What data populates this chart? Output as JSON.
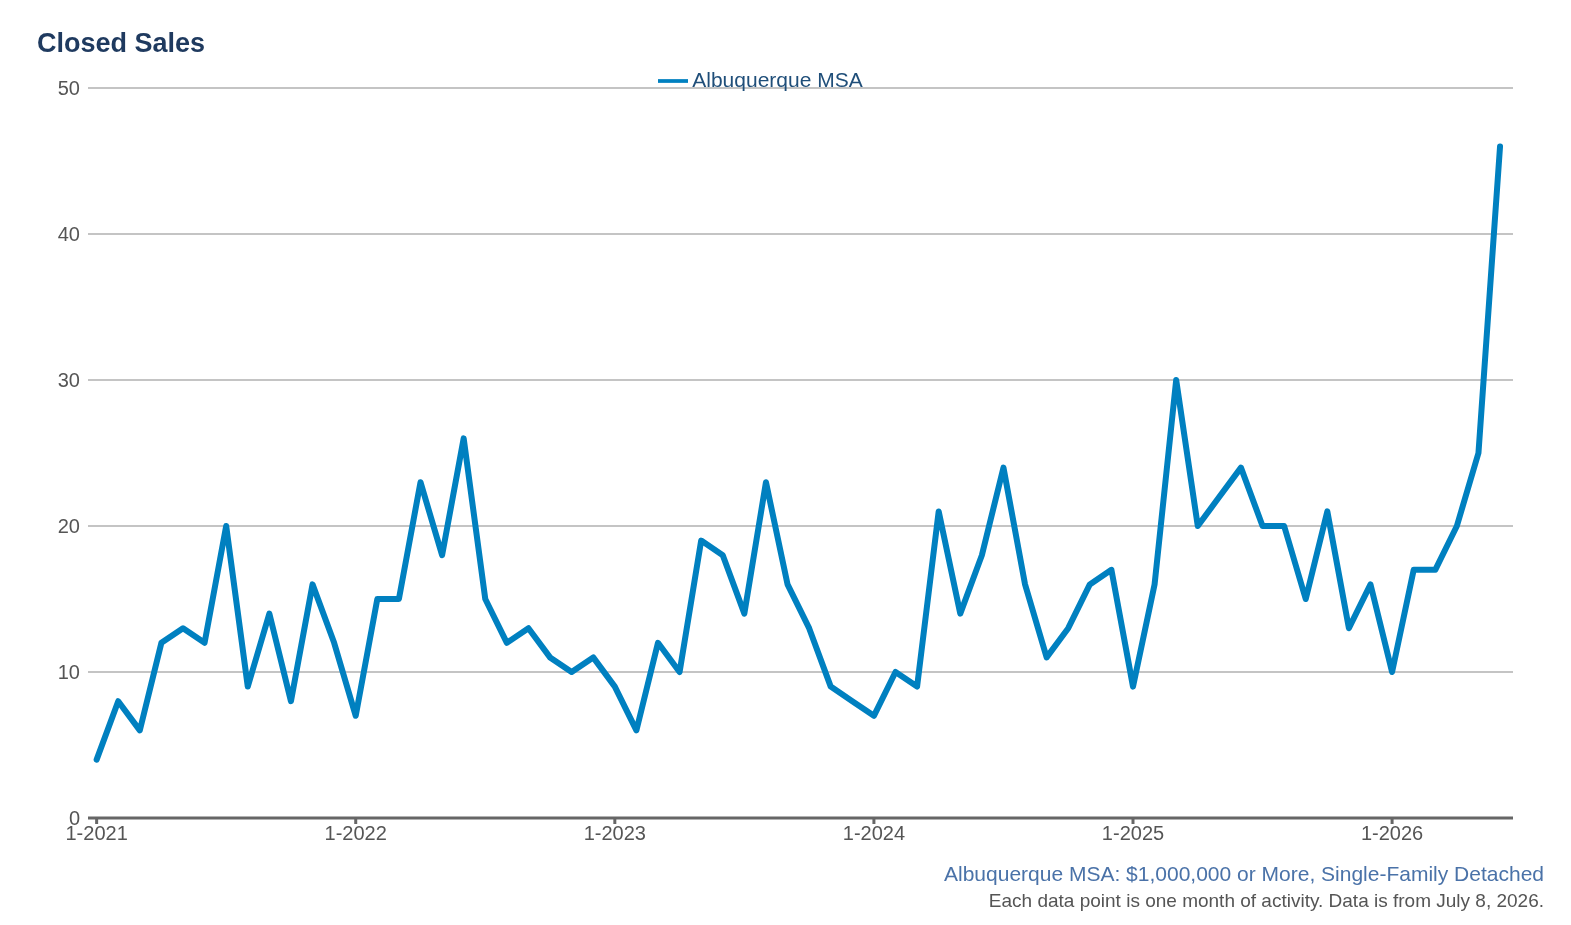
{
  "chart_data": {
    "type": "line",
    "title": "Closed Sales",
    "x": [
      "2021-01",
      "2021-02",
      "2021-03",
      "2021-04",
      "2021-05",
      "2021-06",
      "2021-07",
      "2021-08",
      "2021-09",
      "2021-10",
      "2021-11",
      "2021-12",
      "2022-01",
      "2022-02",
      "2022-03",
      "2022-04",
      "2022-05",
      "2022-06",
      "2022-07",
      "2022-08",
      "2022-09",
      "2022-10",
      "2022-11",
      "2022-12",
      "2023-01",
      "2023-02",
      "2023-03",
      "2023-04",
      "2023-05",
      "2023-06",
      "2023-07",
      "2023-08",
      "2023-09",
      "2023-10",
      "2023-11",
      "2023-12",
      "2024-01",
      "2024-02",
      "2024-03",
      "2024-04",
      "2024-05",
      "2024-06",
      "2024-07",
      "2024-08",
      "2024-09",
      "2024-10",
      "2024-11",
      "2024-12",
      "2025-01",
      "2025-02",
      "2025-03",
      "2025-04",
      "2025-05",
      "2025-06",
      "2025-07",
      "2025-08",
      "2025-09",
      "2025-10",
      "2025-11",
      "2025-12",
      "2026-01",
      "2026-02",
      "2026-03",
      "2026-04",
      "2026-05",
      "2026-06"
    ],
    "series": [
      {
        "name": "Albuquerque MSA",
        "color": "#0080c0",
        "values": [
          4,
          8,
          6,
          12,
          13,
          12,
          20,
          9,
          14,
          8,
          16,
          12,
          7,
          15,
          15,
          23,
          18,
          26,
          15,
          12,
          13,
          11,
          10,
          11,
          9,
          6,
          12,
          10,
          19,
          18,
          14,
          23,
          16,
          13,
          9,
          8,
          7,
          10,
          9,
          21,
          14,
          18,
          24,
          16,
          11,
          13,
          16,
          17,
          9,
          16,
          30,
          20,
          22,
          24,
          20,
          20,
          15,
          21,
          13,
          16,
          10,
          17,
          17,
          20,
          25,
          46
        ]
      }
    ],
    "xlim": [
      "2020-12-19",
      "2026-06-19"
    ],
    "xticks": [
      {
        "value": "2021-01",
        "label": "1-2021"
      },
      {
        "value": "2022-01",
        "label": "1-2022"
      },
      {
        "value": "2023-01",
        "label": "1-2023"
      },
      {
        "value": "2024-01",
        "label": "1-2024"
      },
      {
        "value": "2025-01",
        "label": "1-2025"
      },
      {
        "value": "2026-01",
        "label": "1-2026"
      }
    ],
    "ylim": [
      0,
      50
    ],
    "yticks": [
      0,
      10,
      20,
      30,
      40,
      50
    ],
    "grid": "y",
    "legend": "top",
    "marker": "none",
    "line_style": "solid",
    "annotations": [
      "Albuquerque MSA: $1,000,000 or More, Single-Family Detached",
      "Each data point is one month of activity. Data is from July 8, 2026."
    ]
  }
}
